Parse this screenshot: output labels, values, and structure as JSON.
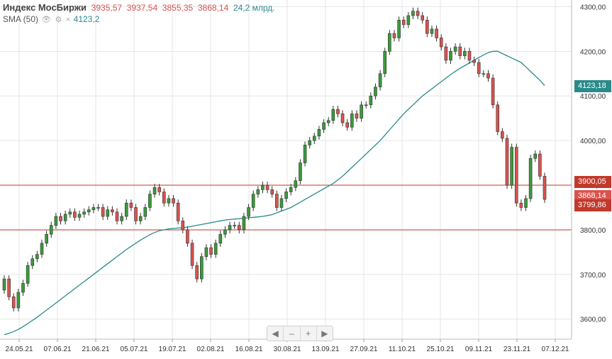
{
  "legend": {
    "title": "Индекс МосБиржи",
    "open": "3935,57",
    "high": "3937,54",
    "low": "3855,35",
    "close": "3868,14",
    "volume": "24,2 млрд.",
    "sma_label": "SMA (50)",
    "sma_value": "4123,2"
  },
  "price_tags": {
    "sma": "4123,18",
    "level_upper": "3900,05",
    "last": "3868,14",
    "level_lower": "3799,86"
  },
  "nav": [
    "◀",
    "–",
    "+",
    "▶"
  ],
  "colors": {
    "up": "#3a9a3a",
    "down": "#d9534f",
    "sma": "#2a8a8a",
    "level": "#c0392b",
    "grid": "#e6e6e6",
    "axis_text": "#333333"
  },
  "chart_data": {
    "type": "candlestick",
    "title": "Индекс МосБиржи",
    "x_tick_labels": [
      "24.05.21",
      "07.06.21",
      "21.06.21",
      "05.07.21",
      "19.07.21",
      "02.08.21",
      "16.08.21",
      "30.08.21",
      "13.09.21",
      "27.09.21",
      "11.10.21",
      "25.10.21",
      "09.11.21",
      "23.11.21",
      "07.12.21"
    ],
    "y_tick_labels": [
      "3600,00",
      "3700,00",
      "3800,00",
      "3900,00",
      "4000,00",
      "4100,00",
      "4200,00",
      "4300,00"
    ],
    "ylim": [
      3555,
      4315
    ],
    "grid": true,
    "horizontal_levels": [
      3900.05,
      3799.86
    ],
    "closes": [
      3690,
      3650,
      3625,
      3660,
      3680,
      3720,
      3735,
      3745,
      3770,
      3790,
      3810,
      3830,
      3820,
      3835,
      3840,
      3828,
      3835,
      3840,
      3845,
      3850,
      3850,
      3830,
      3845,
      3840,
      3820,
      3830,
      3860,
      3850,
      3820,
      3830,
      3850,
      3880,
      3895,
      3885,
      3860,
      3870,
      3860,
      3820,
      3800,
      3770,
      3720,
      3690,
      3740,
      3760,
      3745,
      3770,
      3790,
      3800,
      3810,
      3810,
      3800,
      3830,
      3850,
      3880,
      3890,
      3900,
      3890,
      3880,
      3850,
      3870,
      3885,
      3895,
      3910,
      3950,
      3990,
      4000,
      4010,
      4025,
      4040,
      4045,
      4070,
      4060,
      4040,
      4030,
      4060,
      4050,
      4080,
      4080,
      4100,
      4120,
      4150,
      4200,
      4240,
      4230,
      4270,
      4260,
      4280,
      4290,
      4280,
      4270,
      4240,
      4250,
      4230,
      4210,
      4180,
      4200,
      4210,
      4190,
      4200,
      4180,
      4175,
      4150,
      4150,
      4140,
      4080,
      4020,
      4005,
      3900,
      3985,
      3860,
      3850,
      3870,
      3960,
      3970,
      3920,
      3868.14
    ],
    "sma50": [
      3565,
      3568,
      3572,
      3577,
      3583,
      3590,
      3597,
      3604,
      3612,
      3620,
      3628,
      3636,
      3644,
      3652,
      3660,
      3668,
      3676,
      3684,
      3692,
      3700,
      3708,
      3716,
      3724,
      3732,
      3740,
      3748,
      3756,
      3763,
      3770,
      3777,
      3783,
      3789,
      3794,
      3798,
      3800,
      3802,
      3803,
      3804,
      3805,
      3806,
      3808,
      3810,
      3812,
      3814,
      3816,
      3818,
      3820,
      3822,
      3823,
      3824,
      3825,
      3826,
      3827,
      3828,
      3829,
      3830,
      3832,
      3834,
      3838,
      3842,
      3846,
      3850,
      3856,
      3862,
      3868,
      3874,
      3880,
      3886,
      3892,
      3898,
      3904,
      3912,
      3920,
      3930,
      3940,
      3950,
      3960,
      3970,
      3980,
      3990,
      4000,
      4012,
      4024,
      4036,
      4048,
      4060,
      4070,
      4080,
      4090,
      4100,
      4108,
      4116,
      4124,
      4132,
      4140,
      4148,
      4155,
      4162,
      4168,
      4174,
      4180,
      4186,
      4192,
      4197,
      4200,
      4200,
      4195,
      4190,
      4185,
      4180,
      4175,
      4165,
      4155,
      4145,
      4135,
      4123.18
    ]
  }
}
